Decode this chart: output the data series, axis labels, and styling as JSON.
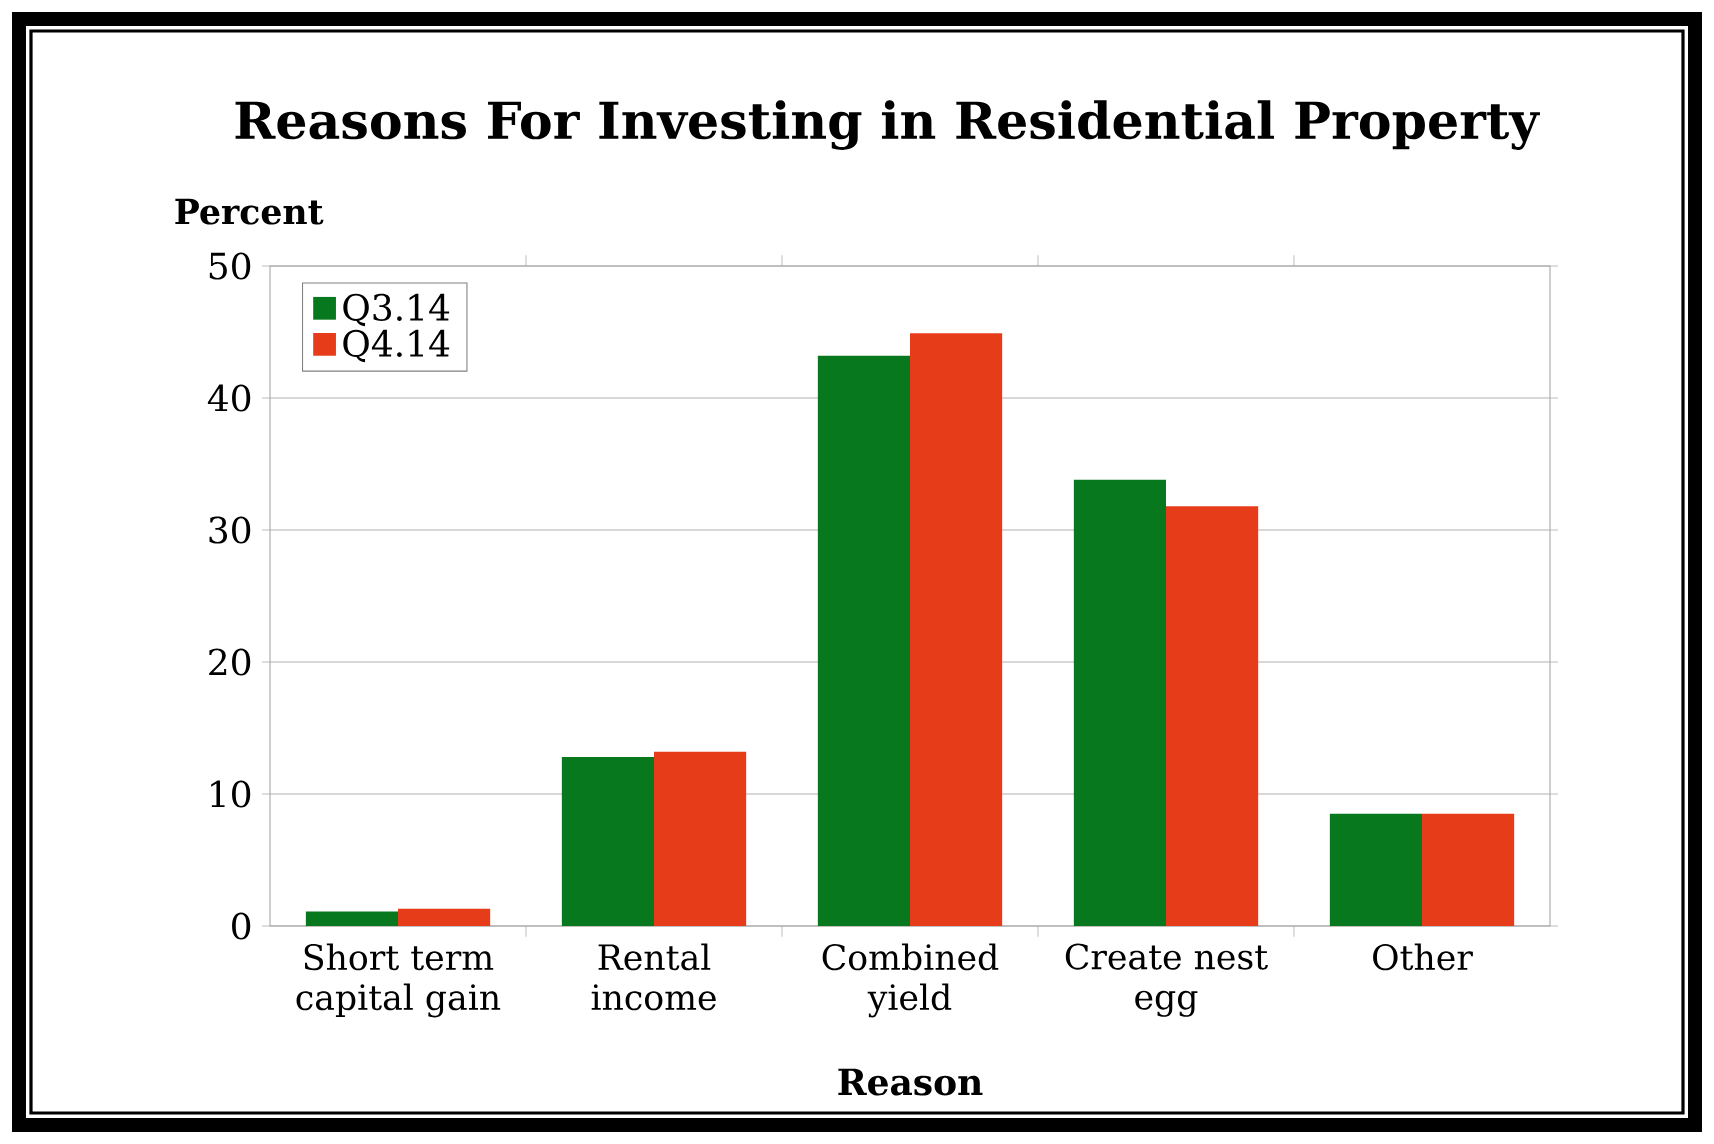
{
  "chart_data": {
    "type": "bar",
    "title": "Reasons For Investing in Residential Property",
    "ylabel": "Percent",
    "xlabel": "Reason",
    "categories": [
      "Short term capital gain",
      "Rental income",
      "Combined yield",
      "Create nest egg",
      "Other"
    ],
    "series": [
      {
        "name": "Q3.14",
        "color": "#08781e",
        "values": [
          1.1,
          12.8,
          43.2,
          33.8,
          8.5
        ]
      },
      {
        "name": "Q4.14",
        "color": "#e63c1a",
        "values": [
          1.3,
          13.2,
          44.9,
          31.8,
          8.5
        ]
      }
    ],
    "ylim": [
      0,
      50
    ],
    "yticks": [
      0,
      10,
      20,
      30,
      40,
      50
    ],
    "grid": "y",
    "legend": "top left"
  }
}
